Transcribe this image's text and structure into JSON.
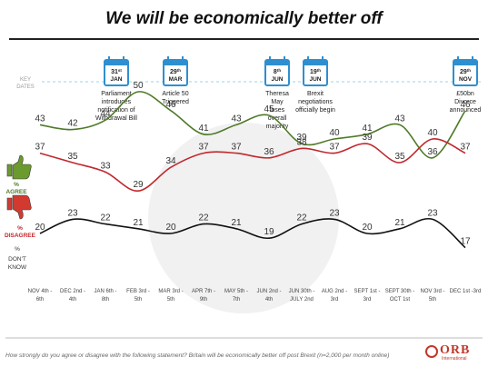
{
  "title": "We will be economically better off",
  "footer_note": "How strongly do you agree or disagree with the following statement? Britain will be economically better off post Brexit (n=2,000 per month online)",
  "logo": {
    "text": "ORB",
    "sub": "International"
  },
  "key_dates_label": "KEY DATES",
  "key_dates": [
    {
      "day": "31",
      "suffix": "st",
      "month": "JAN",
      "text": "Parliament introduces notification of Withdrawal Bill",
      "lines": [
        "Parliament",
        "introduces",
        "notification of",
        "Withdrawal Bill"
      ]
    },
    {
      "day": "29",
      "suffix": "th",
      "month": "MAR",
      "text": "Article 50 Triggered",
      "lines": [
        "Article 50",
        "Triggered"
      ]
    },
    {
      "day": "8",
      "suffix": "th",
      "month": "JUN",
      "text": "Theresa May loses overall majority",
      "lines": [
        "Theresa",
        "May",
        "loses",
        "overall",
        "majority"
      ]
    },
    {
      "day": "19",
      "suffix": "th",
      "month": "JUN",
      "text": "Brexit negotiations officially begin",
      "lines": [
        "Brexit",
        "negotiations",
        "officially begin"
      ]
    },
    {
      "day": "29",
      "suffix": "th",
      "month": "NOV",
      "text": "£50bn Divorce announced",
      "lines": [
        "£50bn",
        "Divorce",
        "announced"
      ]
    }
  ],
  "row_labels": {
    "agree": "% AGREE",
    "disagree": "% DISAGREE",
    "dont_know": "% DON'T KNOW"
  },
  "colors": {
    "agree": "#4f7a28",
    "disagree": "#c0282d",
    "dont_know": "#111111",
    "calendar": "#2e8fd0",
    "thumb_up": "#6b9a2e",
    "thumb_down": "#d23a30"
  },
  "chart_data": {
    "type": "line",
    "x": [
      "NOV 4th - 6th",
      "DEC 2nd - 4th",
      "JAN 6th - 8th",
      "FEB 3rd - 5th",
      "MAR 3rd - 5th",
      "APR 7th - 9th",
      "MAY 5th - 7th",
      "JUN 2nd - 4th",
      "JUN 30th - JULY 2nd",
      "AUG 2nd - 3rd",
      "SEPT 1st - 3rd",
      "SEPT 30th - OCT 1st",
      "NOV 3rd - 5th",
      "DEC 1st - 3rd"
    ],
    "x_lines": [
      [
        "NOV 4th -",
        "6th"
      ],
      [
        "DEC 2nd -",
        "4th"
      ],
      [
        "JAN 6th -",
        "8th"
      ],
      [
        "FEB 3rd -",
        "5th"
      ],
      [
        "MAR 3rd -",
        "5th"
      ],
      [
        "APR 7th -",
        "9th"
      ],
      [
        "MAY 5th -",
        "7th"
      ],
      [
        "JUN 2nd -",
        "4th"
      ],
      [
        "JUN 30th -",
        "JULY 2nd"
      ],
      [
        "AUG 2nd -",
        "3rd"
      ],
      [
        "SEPT 1st -",
        "3rd"
      ],
      [
        "SEPT 30th -",
        "OCT 1st"
      ],
      [
        "NOV 3rd -",
        "5th"
      ],
      [
        "DEC 1st -3rd"
      ]
    ],
    "series": [
      {
        "name": "% AGREE",
        "key": "agree",
        "values": [
          43,
          42,
          44,
          50,
          46,
          41,
          43,
          45,
          39,
          40,
          41,
          43,
          36,
          46
        ]
      },
      {
        "name": "% DISAGREE",
        "key": "disagree",
        "values": [
          37,
          35,
          33,
          29,
          34,
          37,
          37,
          36,
          38,
          37,
          39,
          35,
          40,
          37
        ]
      },
      {
        "name": "% DON'T KNOW",
        "key": "dont_know",
        "values": [
          20,
          23,
          22,
          21,
          20,
          22,
          21,
          19,
          22,
          23,
          20,
          21,
          23,
          17
        ]
      }
    ]
  }
}
